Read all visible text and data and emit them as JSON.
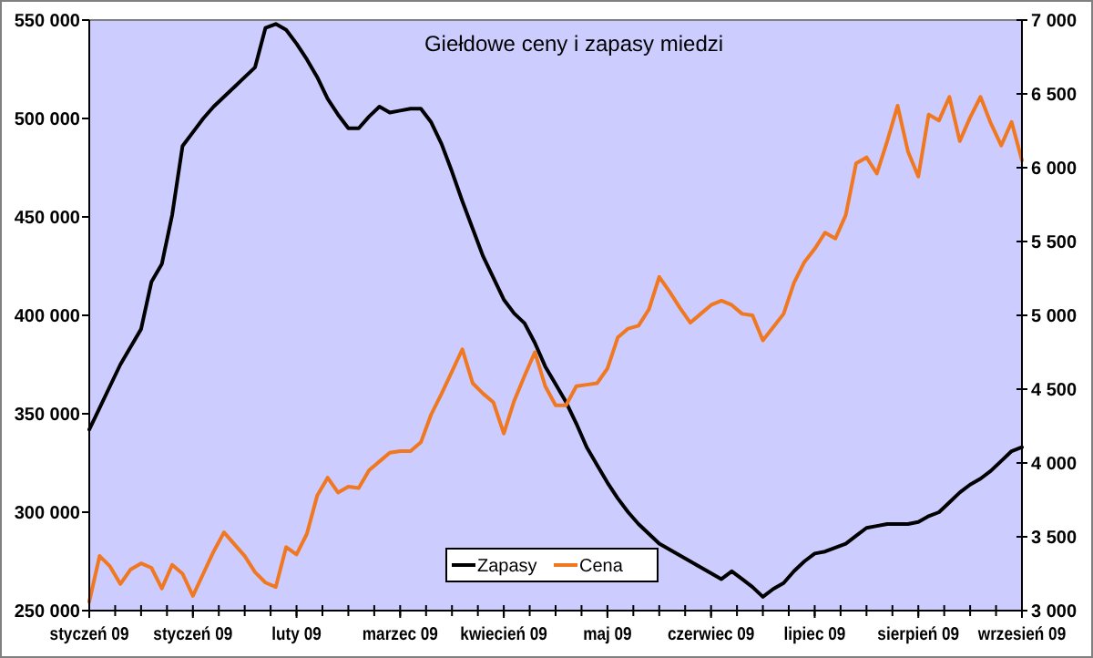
{
  "chart_data": {
    "type": "line",
    "title": "Giełdowe ceny i zapasy miedzi",
    "legend": "bottom",
    "grid": false,
    "categories": [
      "styczeń 09",
      null,
      null,
      null,
      null,
      null,
      null,
      null,
      null,
      null,
      "styczeń 09",
      null,
      null,
      null,
      null,
      null,
      null,
      null,
      null,
      null,
      "luty 09",
      null,
      null,
      null,
      null,
      null,
      null,
      null,
      null,
      null,
      "marzec 09",
      null,
      null,
      null,
      null,
      null,
      null,
      null,
      null,
      null,
      "kwiecień 09",
      null,
      null,
      null,
      null,
      null,
      null,
      null,
      null,
      null,
      "maj 09",
      null,
      null,
      null,
      null,
      null,
      null,
      null,
      null,
      null,
      "czerwiec 09",
      null,
      null,
      null,
      null,
      null,
      null,
      null,
      null,
      null,
      "lipiec 09",
      null,
      null,
      null,
      null,
      null,
      null,
      null,
      null,
      null,
      "sierpień 09",
      null,
      null,
      null,
      null,
      null,
      null,
      null,
      null,
      null,
      "wrzesień 09"
    ],
    "ylim": [
      250000,
      550000
    ],
    "yticks": [
      {
        "value": 250000,
        "label": "250 000"
      },
      {
        "value": 300000,
        "label": "300 000"
      },
      {
        "value": 350000,
        "label": "350 000"
      },
      {
        "value": 400000,
        "label": "400 000"
      },
      {
        "value": 450000,
        "label": "450 000"
      },
      {
        "value": 500000,
        "label": "500 000"
      },
      {
        "value": 550000,
        "label": "550 000"
      }
    ],
    "y2lim": [
      3000,
      7000
    ],
    "y2ticks": [
      {
        "value": 3000,
        "label": "3 000"
      },
      {
        "value": 3500,
        "label": "3 500"
      },
      {
        "value": 4000,
        "label": "4 000"
      },
      {
        "value": 4500,
        "label": "4 500"
      },
      {
        "value": 5000,
        "label": "5 000"
      },
      {
        "value": 5500,
        "label": "5 500"
      },
      {
        "value": 6000,
        "label": "6 000"
      },
      {
        "value": 6500,
        "label": "6 500"
      },
      {
        "value": 7000,
        "label": "7 000"
      }
    ],
    "series": [
      {
        "name": "Zapasy",
        "color": "#000000",
        "values": [
          342000,
          353000,
          364000,
          375000,
          384000,
          393000,
          417000,
          426000,
          451000,
          486000,
          493000,
          500000,
          506000,
          511000,
          516000,
          521000,
          526000,
          546000,
          548000,
          545000,
          538000,
          530000,
          521000,
          510000,
          502000,
          495000,
          495000,
          501000,
          506000,
          503000,
          504000,
          505000,
          505000,
          498000,
          487000,
          473000,
          458000,
          444000,
          430000,
          419000,
          408000,
          401000,
          396000,
          386000,
          374000,
          365000,
          356000,
          345000,
          333000,
          324000,
          315000,
          307000,
          300000,
          294000,
          289000,
          284000,
          281000,
          278000,
          275000,
          272000,
          269000,
          266000,
          270000,
          266000,
          262000,
          257000,
          261000,
          264000,
          270000,
          275000,
          279000,
          280000,
          282000,
          284000,
          288000,
          292000,
          293000,
          294000,
          294000,
          294000,
          295000,
          298000,
          300000,
          305000,
          310000,
          314000,
          317000,
          321000,
          326000,
          331000,
          333000
        ]
      },
      {
        "name": "Cena",
        "color": "#f07820",
        "axis": "y2",
        "values": [
          3060,
          3370,
          3300,
          3180,
          3280,
          3320,
          3290,
          3150,
          3310,
          3250,
          3100,
          3250,
          3400,
          3530,
          3450,
          3370,
          3260,
          3190,
          3160,
          3430,
          3380,
          3520,
          3780,
          3900,
          3800,
          3840,
          3830,
          3950,
          4010,
          4070,
          4080,
          4080,
          4140,
          4330,
          4470,
          4620,
          4770,
          4540,
          4470,
          4410,
          4200,
          4420,
          4590,
          4750,
          4520,
          4390,
          4390,
          4520,
          4530,
          4540,
          4640,
          4850,
          4910,
          4930,
          5040,
          5260,
          5160,
          5050,
          4950,
          5010,
          5070,
          5100,
          5070,
          5010,
          5000,
          4830,
          4920,
          5010,
          5220,
          5360,
          5450,
          5560,
          5520,
          5680,
          6030,
          6070,
          5960,
          6180,
          6420,
          6110,
          5940,
          6360,
          6320,
          6480,
          6180,
          6340,
          6480,
          6300,
          6150,
          6310,
          6050
        ]
      }
    ]
  }
}
